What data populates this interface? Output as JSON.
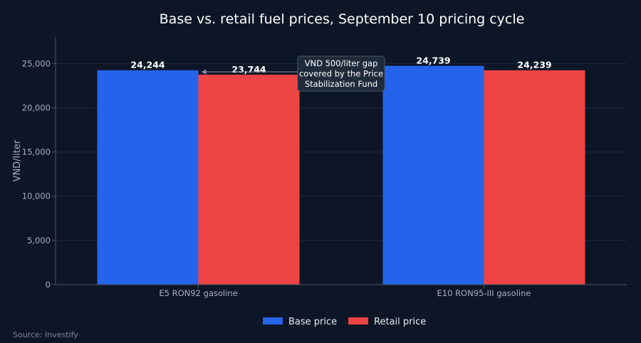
{
  "chart_data": {
    "type": "bar",
    "title": "Base vs. retail fuel prices, September 10 pricing cycle",
    "ylabel": "VND/liter",
    "xlabel": "",
    "categories": [
      "E5 RON92 gasoline",
      "E10 RON95-III gasoline"
    ],
    "series": [
      {
        "name": "Base price",
        "values": [
          24244,
          24739
        ],
        "labels": [
          "24,244",
          "24,739"
        ],
        "color": "#2563eb"
      },
      {
        "name": "Retail price",
        "values": [
          23744,
          24239
        ],
        "labels": [
          "23,744",
          "24,239"
        ],
        "color": "#ef4444"
      }
    ],
    "ylim": [
      0,
      28000
    ],
    "yticks": [
      0,
      5000,
      10000,
      15000,
      20000,
      25000
    ],
    "ytick_labels": [
      "0",
      "5,000",
      "10,000",
      "15,000",
      "20,000",
      "25,000"
    ],
    "grid": true,
    "legend_position": "bottom-center",
    "annotation": {
      "lines": [
        "VND 500/liter gap",
        "covered by the Price",
        "Stabilization Fund"
      ],
      "category_index": 0,
      "series_index": 1
    },
    "source": "Source: Investify"
  },
  "colors": {
    "background": "#0c1626",
    "grid": "#1c2a3d",
    "axis": "#4a5566"
  }
}
